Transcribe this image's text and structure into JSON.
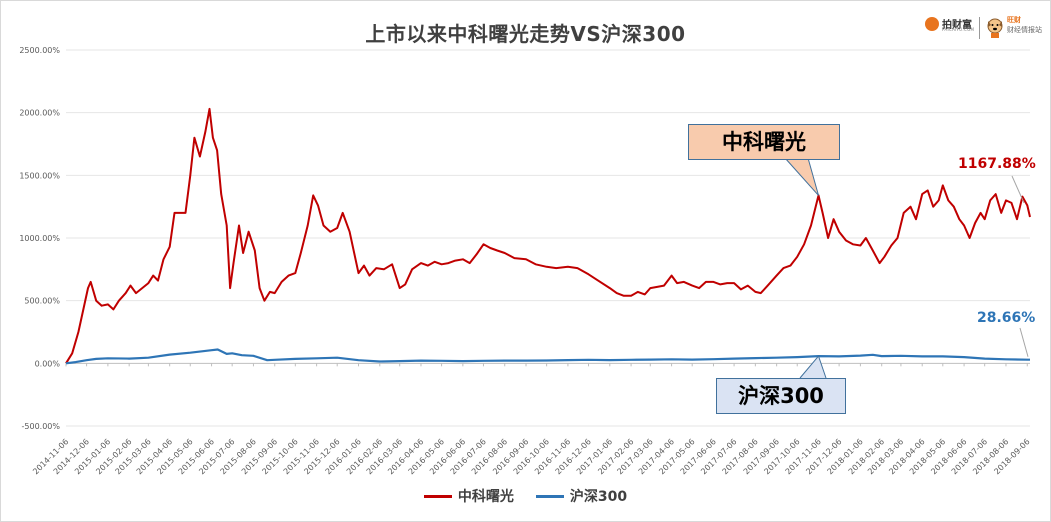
{
  "title": "上市以来中科曙光走势VS沪深300",
  "logo": {
    "brand": "拍财富",
    "brand_sub": "PAICAIFU.COM",
    "partner_top": "旺财",
    "partner_bottom": "财经情报站"
  },
  "annotations": {
    "zk_callout": "中科曙光",
    "hs_callout": "沪深300",
    "zk_end": "1167.88%",
    "hs_end": "28.66%"
  },
  "colors": {
    "zk": "#c00000",
    "hs": "#2e75b6"
  },
  "chart_data": {
    "type": "line",
    "title": "上市以来中科曙光走势VS沪深300",
    "y_ticks": [
      "2500.00%",
      "2000.00%",
      "1500.00%",
      "1000.00%",
      "500.00%",
      "0.00%",
      "-500.00%"
    ],
    "ylim": [
      -500,
      2500
    ],
    "categories": [
      "2014-11-06",
      "2014-12-06",
      "2015-01-06",
      "2015-02-06",
      "2015-03-06",
      "2015-04-06",
      "2015-05-06",
      "2015-06-06",
      "2015-07-06",
      "2015-08-06",
      "2015-09-06",
      "2015-10-06",
      "2015-11-06",
      "2015-12-06",
      "2016-01-06",
      "2016-02-06",
      "2016-03-06",
      "2016-04-06",
      "2016-05-06",
      "2016-06-06",
      "2016-07-06",
      "2016-08-06",
      "2016-09-06",
      "2016-10-06",
      "2016-11-06",
      "2016-12-06",
      "2017-01-06",
      "2017-02-06",
      "2017-03-06",
      "2017-04-06",
      "2017-05-06",
      "2017-06-06",
      "2017-07-06",
      "2017-08-06",
      "2017-09-06",
      "2017-10-06",
      "2017-11-06",
      "2017-12-06",
      "2018-01-06",
      "2018-02-06",
      "2018-03-06",
      "2018-04-06",
      "2018-05-06",
      "2018-06-06",
      "2018-07-06",
      "2018-08-06",
      "2018-09-06"
    ],
    "series": [
      {
        "name": "中科曙光",
        "color": "#c00000",
        "points": [
          [
            "2014-11-06",
            0
          ],
          [
            "2014-11-15",
            80
          ],
          [
            "2014-11-24",
            250
          ],
          [
            "2014-12-02",
            450
          ],
          [
            "2014-12-08",
            600
          ],
          [
            "2014-12-12",
            650
          ],
          [
            "2014-12-20",
            500
          ],
          [
            "2014-12-28",
            460
          ],
          [
            "2015-01-06",
            470
          ],
          [
            "2015-01-14",
            430
          ],
          [
            "2015-01-22",
            500
          ],
          [
            "2015-02-01",
            560
          ],
          [
            "2015-02-08",
            620
          ],
          [
            "2015-02-16",
            560
          ],
          [
            "2015-02-25",
            600
          ],
          [
            "2015-03-06",
            640
          ],
          [
            "2015-03-13",
            700
          ],
          [
            "2015-03-20",
            660
          ],
          [
            "2015-03-28",
            830
          ],
          [
            "2015-04-06",
            930
          ],
          [
            "2015-04-13",
            1200
          ],
          [
            "2015-04-21",
            1200
          ],
          [
            "2015-04-29",
            1200
          ],
          [
            "2015-05-06",
            1500
          ],
          [
            "2015-05-12",
            1800
          ],
          [
            "2015-05-20",
            1650
          ],
          [
            "2015-05-28",
            1850
          ],
          [
            "2015-06-03",
            2030
          ],
          [
            "2015-06-08",
            1800
          ],
          [
            "2015-06-14",
            1700
          ],
          [
            "2015-06-20",
            1350
          ],
          [
            "2015-06-28",
            1100
          ],
          [
            "2015-07-03",
            600
          ],
          [
            "2015-07-08",
            800
          ],
          [
            "2015-07-16",
            1100
          ],
          [
            "2015-07-22",
            880
          ],
          [
            "2015-07-30",
            1050
          ],
          [
            "2015-08-08",
            900
          ],
          [
            "2015-08-15",
            600
          ],
          [
            "2015-08-22",
            500
          ],
          [
            "2015-08-30",
            570
          ],
          [
            "2015-09-06",
            560
          ],
          [
            "2015-09-16",
            650
          ],
          [
            "2015-09-26",
            700
          ],
          [
            "2015-10-06",
            720
          ],
          [
            "2015-10-14",
            880
          ],
          [
            "2015-10-24",
            1100
          ],
          [
            "2015-11-01",
            1340
          ],
          [
            "2015-11-08",
            1260
          ],
          [
            "2015-11-16",
            1100
          ],
          [
            "2015-11-26",
            1050
          ],
          [
            "2015-12-06",
            1080
          ],
          [
            "2015-12-14",
            1200
          ],
          [
            "2015-12-24",
            1050
          ],
          [
            "2016-01-06",
            720
          ],
          [
            "2016-01-14",
            780
          ],
          [
            "2016-01-22",
            700
          ],
          [
            "2016-02-01",
            760
          ],
          [
            "2016-02-12",
            750
          ],
          [
            "2016-02-24",
            790
          ],
          [
            "2016-03-06",
            600
          ],
          [
            "2016-03-14",
            630
          ],
          [
            "2016-03-24",
            750
          ],
          [
            "2016-04-06",
            800
          ],
          [
            "2016-04-16",
            780
          ],
          [
            "2016-04-26",
            810
          ],
          [
            "2016-05-06",
            790
          ],
          [
            "2016-05-16",
            800
          ],
          [
            "2016-05-26",
            820
          ],
          [
            "2016-06-06",
            830
          ],
          [
            "2016-06-16",
            800
          ],
          [
            "2016-06-26",
            870
          ],
          [
            "2016-07-06",
            950
          ],
          [
            "2016-07-16",
            920
          ],
          [
            "2016-07-26",
            900
          ],
          [
            "2016-08-06",
            880
          ],
          [
            "2016-08-20",
            840
          ],
          [
            "2016-09-06",
            830
          ],
          [
            "2016-09-20",
            790
          ],
          [
            "2016-10-06",
            770
          ],
          [
            "2016-10-20",
            760
          ],
          [
            "2016-11-06",
            770
          ],
          [
            "2016-11-20",
            760
          ],
          [
            "2016-12-06",
            710
          ],
          [
            "2016-12-20",
            660
          ],
          [
            "2017-01-06",
            600
          ],
          [
            "2017-01-16",
            560
          ],
          [
            "2017-01-26",
            540
          ],
          [
            "2017-02-06",
            540
          ],
          [
            "2017-02-16",
            570
          ],
          [
            "2017-02-26",
            550
          ],
          [
            "2017-03-06",
            600
          ],
          [
            "2017-03-16",
            610
          ],
          [
            "2017-03-26",
            620
          ],
          [
            "2017-04-06",
            700
          ],
          [
            "2017-04-14",
            640
          ],
          [
            "2017-04-24",
            650
          ],
          [
            "2017-05-06",
            620
          ],
          [
            "2017-05-16",
            600
          ],
          [
            "2017-05-26",
            650
          ],
          [
            "2017-06-06",
            650
          ],
          [
            "2017-06-16",
            630
          ],
          [
            "2017-06-26",
            640
          ],
          [
            "2017-07-06",
            640
          ],
          [
            "2017-07-16",
            590
          ],
          [
            "2017-07-26",
            620
          ],
          [
            "2017-08-06",
            570
          ],
          [
            "2017-08-14",
            560
          ],
          [
            "2017-08-24",
            620
          ],
          [
            "2017-09-06",
            700
          ],
          [
            "2017-09-16",
            760
          ],
          [
            "2017-09-26",
            780
          ],
          [
            "2017-10-06",
            850
          ],
          [
            "2017-10-16",
            950
          ],
          [
            "2017-10-26",
            1100
          ],
          [
            "2017-11-06",
            1340
          ],
          [
            "2017-11-12",
            1200
          ],
          [
            "2017-11-20",
            1000
          ],
          [
            "2017-11-28",
            1150
          ],
          [
            "2017-12-06",
            1050
          ],
          [
            "2017-12-16",
            980
          ],
          [
            "2017-12-26",
            950
          ],
          [
            "2018-01-06",
            940
          ],
          [
            "2018-01-14",
            1000
          ],
          [
            "2018-01-24",
            900
          ],
          [
            "2018-02-03",
            800
          ],
          [
            "2018-02-10",
            850
          ],
          [
            "2018-02-20",
            940
          ],
          [
            "2018-03-01",
            1000
          ],
          [
            "2018-03-10",
            1200
          ],
          [
            "2018-03-20",
            1250
          ],
          [
            "2018-03-28",
            1150
          ],
          [
            "2018-04-06",
            1350
          ],
          [
            "2018-04-14",
            1380
          ],
          [
            "2018-04-22",
            1250
          ],
          [
            "2018-04-30",
            1300
          ],
          [
            "2018-05-06",
            1420
          ],
          [
            "2018-05-14",
            1300
          ],
          [
            "2018-05-22",
            1250
          ],
          [
            "2018-05-30",
            1150
          ],
          [
            "2018-06-06",
            1100
          ],
          [
            "2018-06-14",
            1000
          ],
          [
            "2018-06-22",
            1120
          ],
          [
            "2018-06-30",
            1200
          ],
          [
            "2018-07-06",
            1150
          ],
          [
            "2018-07-14",
            1300
          ],
          [
            "2018-07-22",
            1350
          ],
          [
            "2018-07-30",
            1200
          ],
          [
            "2018-08-06",
            1300
          ],
          [
            "2018-08-14",
            1280
          ],
          [
            "2018-08-22",
            1150
          ],
          [
            "2018-08-30",
            1330
          ],
          [
            "2018-09-06",
            1260
          ],
          [
            "2018-09-10",
            1167.88
          ]
        ]
      },
      {
        "name": "沪深300",
        "color": "#2e75b6",
        "points": [
          [
            "2014-11-06",
            0
          ],
          [
            "2014-11-20",
            10
          ],
          [
            "2014-12-06",
            25
          ],
          [
            "2014-12-20",
            35
          ],
          [
            "2015-01-06",
            40
          ],
          [
            "2015-02-06",
            38
          ],
          [
            "2015-03-06",
            45
          ],
          [
            "2015-04-06",
            70
          ],
          [
            "2015-05-06",
            85
          ],
          [
            "2015-06-06",
            105
          ],
          [
            "2015-06-15",
            110
          ],
          [
            "2015-06-28",
            75
          ],
          [
            "2015-07-06",
            80
          ],
          [
            "2015-07-20",
            65
          ],
          [
            "2015-08-06",
            60
          ],
          [
            "2015-08-26",
            25
          ],
          [
            "2015-09-06",
            28
          ],
          [
            "2015-10-06",
            35
          ],
          [
            "2015-11-06",
            40
          ],
          [
            "2015-12-06",
            45
          ],
          [
            "2016-01-06",
            25
          ],
          [
            "2016-02-06",
            15
          ],
          [
            "2016-03-06",
            18
          ],
          [
            "2016-04-06",
            22
          ],
          [
            "2016-05-06",
            20
          ],
          [
            "2016-06-06",
            18
          ],
          [
            "2016-07-06",
            20
          ],
          [
            "2016-08-06",
            22
          ],
          [
            "2016-09-06",
            22
          ],
          [
            "2016-10-06",
            23
          ],
          [
            "2016-11-06",
            26
          ],
          [
            "2016-12-06",
            28
          ],
          [
            "2017-01-06",
            26
          ],
          [
            "2017-02-06",
            28
          ],
          [
            "2017-03-06",
            30
          ],
          [
            "2017-04-06",
            32
          ],
          [
            "2017-05-06",
            30
          ],
          [
            "2017-06-06",
            33
          ],
          [
            "2017-07-06",
            38
          ],
          [
            "2017-08-06",
            42
          ],
          [
            "2017-09-06",
            45
          ],
          [
            "2017-10-06",
            50
          ],
          [
            "2017-11-06",
            58
          ],
          [
            "2017-12-06",
            55
          ],
          [
            "2018-01-06",
            62
          ],
          [
            "2018-01-24",
            68
          ],
          [
            "2018-02-06",
            58
          ],
          [
            "2018-03-06",
            60
          ],
          [
            "2018-04-06",
            55
          ],
          [
            "2018-05-06",
            55
          ],
          [
            "2018-06-06",
            50
          ],
          [
            "2018-07-06",
            38
          ],
          [
            "2018-08-06",
            32
          ],
          [
            "2018-09-06",
            29
          ],
          [
            "2018-09-10",
            28.66
          ]
        ]
      }
    ]
  }
}
